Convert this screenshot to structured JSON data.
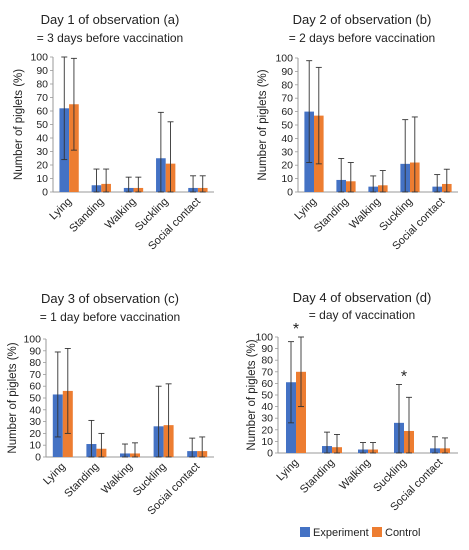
{
  "legend": {
    "entries": [
      {
        "label": "Experiment",
        "color": "#4472C4"
      },
      {
        "label": "Control",
        "color": "#ED7D31"
      }
    ]
  },
  "chart_data": [
    {
      "type": "bar",
      "title": "Day 1 of observation (a)",
      "subtitle": "= 3 days before vaccination",
      "categories": [
        "Lying",
        "Standing",
        "Walking",
        "Suckling",
        "Social contact"
      ],
      "series": [
        {
          "name": "Experiment",
          "values": [
            62,
            5,
            3,
            25,
            3
          ],
          "error": [
            38,
            12,
            8,
            34,
            9
          ]
        },
        {
          "name": "Control",
          "values": [
            65,
            6,
            3,
            21,
            3
          ],
          "error": [
            34,
            11,
            8,
            31,
            9
          ]
        }
      ],
      "xlabel": "",
      "ylabel": "Number of piglets (%)",
      "ylim": [
        0,
        100
      ],
      "yticks": [
        0,
        10,
        20,
        30,
        40,
        50,
        60,
        70,
        80,
        90,
        100
      ],
      "annotations": []
    },
    {
      "type": "bar",
      "title": "Day 2 of observation (b)",
      "subtitle": "= 2 days before vaccination",
      "categories": [
        "Lying",
        "Standing",
        "Walking",
        "Suckling",
        "Social contact"
      ],
      "series": [
        {
          "name": "Experiment",
          "values": [
            60,
            9,
            4,
            21,
            4
          ],
          "error": [
            38,
            16,
            8,
            33,
            9
          ]
        },
        {
          "name": "Control",
          "values": [
            57,
            8,
            5,
            22,
            6
          ],
          "error": [
            36,
            14,
            11,
            34,
            11
          ]
        }
      ],
      "xlabel": "",
      "ylabel": "Number of piglets (%)",
      "ylim": [
        0,
        100
      ],
      "yticks": [
        0,
        10,
        20,
        30,
        40,
        50,
        60,
        70,
        80,
        90,
        100
      ],
      "annotations": []
    },
    {
      "type": "bar",
      "title": "Day 3 of observation (c)",
      "subtitle": "= 1 day before vaccination",
      "categories": [
        "Lying",
        "Standing",
        "Walking",
        "Suckling",
        "Social contact"
      ],
      "series": [
        {
          "name": "Experiment",
          "values": [
            53,
            11,
            3,
            26,
            5
          ],
          "error": [
            36,
            20,
            8,
            34,
            11
          ]
        },
        {
          "name": "Control",
          "values": [
            56,
            7,
            3,
            27,
            5
          ],
          "error": [
            36,
            13,
            9,
            35,
            12
          ]
        }
      ],
      "xlabel": "",
      "ylabel": "Number of piglets (%)",
      "ylim": [
        0,
        100
      ],
      "yticks": [
        0,
        10,
        20,
        30,
        40,
        50,
        60,
        70,
        80,
        90,
        100
      ],
      "annotations": []
    },
    {
      "type": "bar",
      "title": "Day 4 of observation (d)",
      "subtitle": "= day of vaccination",
      "categories": [
        "Lying",
        "Standing",
        "Walking",
        "Suckling",
        "Social contact"
      ],
      "series": [
        {
          "name": "Experiment",
          "values": [
            61,
            6,
            3,
            26,
            4
          ],
          "error": [
            35,
            12,
            6,
            33,
            10
          ]
        },
        {
          "name": "Control",
          "values": [
            70,
            5,
            3,
            19,
            4
          ],
          "error": [
            30,
            11,
            6,
            29,
            9
          ]
        }
      ],
      "xlabel": "",
      "ylabel": "Number of piglets (%)",
      "ylim": [
        0,
        100
      ],
      "yticks": [
        0,
        10,
        20,
        30,
        40,
        50,
        60,
        70,
        80,
        90,
        100
      ],
      "annotations": [
        {
          "category": "Lying",
          "text": "*"
        },
        {
          "category": "Suckling",
          "text": "*"
        }
      ]
    }
  ]
}
